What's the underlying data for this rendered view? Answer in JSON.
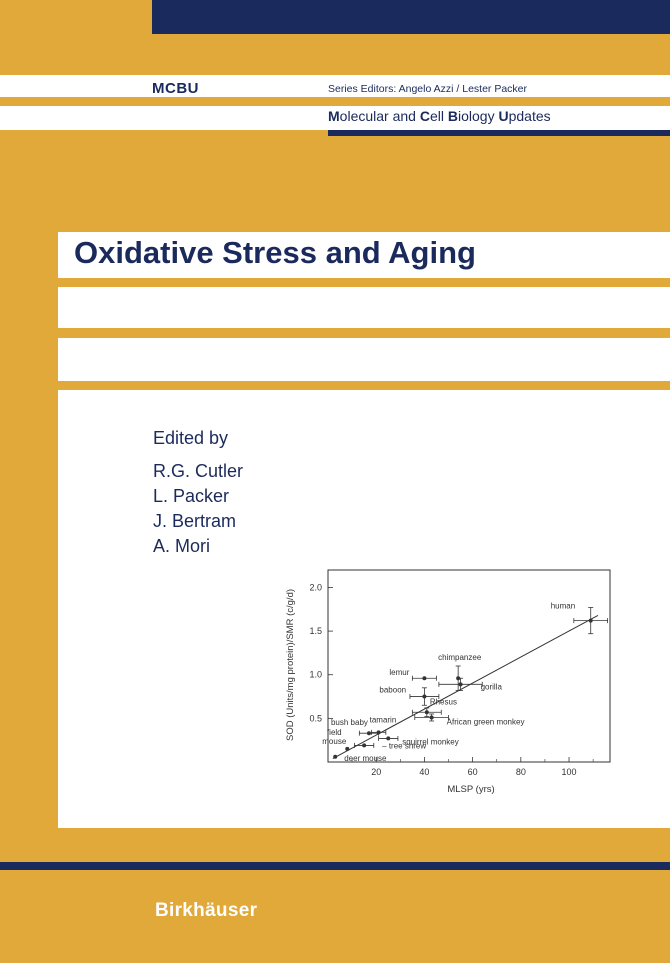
{
  "series": {
    "abbr": "MCBU",
    "editors": "Series Editors: Angelo Azzi / Lester Packer",
    "title_parts": [
      {
        "letter": "M",
        "rest": "olecular and "
      },
      {
        "letter": "C",
        "rest": "ell "
      },
      {
        "letter": "B",
        "rest": "iology "
      },
      {
        "letter": "U",
        "rest": "pdates"
      }
    ]
  },
  "book": {
    "title": "Oxidative Stress and Aging",
    "edited_by": "Edited by",
    "editors": [
      "R.G. Cutler",
      "L. Packer",
      "J. Bertram",
      "A. Mori"
    ]
  },
  "publisher": "Birkhäuser",
  "colors": {
    "background": "#E0A93A",
    "navy": "#1B2A5C",
    "white": "#FFFFFF"
  },
  "chart_data": {
    "type": "scatter",
    "xlabel": "MLSP (yrs)",
    "ylabel": "SOD (Units/mg protein)/SMR (c/g/d)",
    "xlim": [
      0,
      117
    ],
    "ylim": [
      0,
      2.2
    ],
    "x_ticks": [
      20,
      40,
      60,
      80,
      100
    ],
    "y_ticks": [
      0.5,
      1.0,
      1.5,
      2.0
    ],
    "x_tick_labels": [
      "20",
      "40",
      "60",
      "80",
      "100"
    ],
    "y_tick_labels": [
      "0.5",
      "1.0",
      "1.5",
      "2.0"
    ],
    "fit_line": {
      "x": [
        2,
        112
      ],
      "y": [
        0.04,
        1.68
      ]
    },
    "points": [
      {
        "label": "human",
        "x": 109,
        "y": 1.62,
        "xerr": 7,
        "yerr": 0.15
      },
      {
        "label": "chimpanzee",
        "x": 54,
        "y": 0.96,
        "xerr": 0,
        "yerr": 0.14
      },
      {
        "label": "gorilla",
        "x": 55,
        "y": 0.89,
        "xerr": 9,
        "yerr": 0.07
      },
      {
        "label": "lemur",
        "x": 40,
        "y": 0.96,
        "xerr": 5,
        "yerr": 0
      },
      {
        "label": "baboon",
        "x": 40,
        "y": 0.75,
        "xerr": 6,
        "yerr": 0.1
      },
      {
        "label": "Rhesus",
        "x": 41,
        "y": 0.57,
        "xerr": 6,
        "yerr": 0.05
      },
      {
        "label": "African green monkey",
        "x": 43,
        "y": 0.51,
        "xerr": 7,
        "yerr": 0.04
      },
      {
        "label": "tamarin",
        "x": 21,
        "y": 0.34,
        "xerr": 3,
        "yerr": 0
      },
      {
        "label": "bush baby",
        "x": 17,
        "y": 0.33,
        "xerr": 4,
        "yerr": 0
      },
      {
        "label": "squirrel monkey",
        "x": 25,
        "y": 0.27,
        "xerr": 4,
        "yerr": 0
      },
      {
        "label": "tree shrew",
        "x": 15,
        "y": 0.19,
        "xerr": 4,
        "yerr": 0
      },
      {
        "label": "field mouse",
        "x": 8,
        "y": 0.15,
        "xerr": 0,
        "yerr": 0
      },
      {
        "label": "deer mouse",
        "x": 3,
        "y": 0.06,
        "xerr": 0,
        "yerr": 0
      }
    ]
  }
}
